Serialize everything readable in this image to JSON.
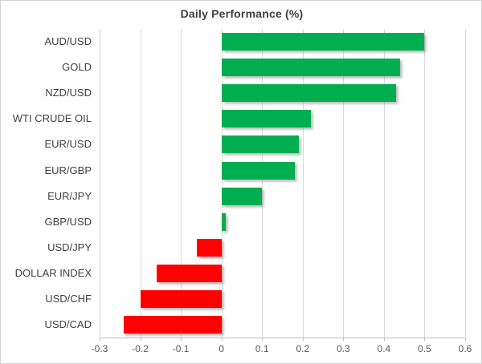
{
  "chart_data": {
    "type": "bar",
    "orientation": "horizontal",
    "title": "Daily Performance (%)",
    "categories": [
      "AUD/USD",
      "GOLD",
      "NZD/USD",
      "WTI CRUDE OIL",
      "EUR/USD",
      "EUR/GBP",
      "EUR/JPY",
      "GBP/USD",
      "USD/JPY",
      "DOLLAR INDEX",
      "USD/CHF",
      "USD/CAD"
    ],
    "values": [
      0.5,
      0.44,
      0.43,
      0.22,
      0.19,
      0.18,
      0.1,
      0.01,
      -0.06,
      -0.16,
      -0.2,
      -0.24
    ],
    "xlim": [
      -0.3,
      0.6
    ],
    "x_tick_values": [
      -0.3,
      -0.2,
      -0.1,
      0,
      0.1,
      0.2,
      0.3,
      0.4,
      0.5,
      0.6
    ],
    "x_tick_labels": [
      "-0.3",
      "-0.2",
      "-0.1",
      "0",
      "0.1",
      "0.2",
      "0.3",
      "0.4",
      "0.5",
      "0.6"
    ],
    "grid": true,
    "legend": "none",
    "colors": {
      "positive": "#00AE50",
      "negative": "#FF0000",
      "gridline": "#D9D9D9",
      "axis_line": "#BFBFBF",
      "title_text": "#3F3F3F",
      "category_text": "#404040",
      "tick_text": "#595959",
      "background": "#FFFFFF",
      "border": "#D4D4D4"
    }
  }
}
